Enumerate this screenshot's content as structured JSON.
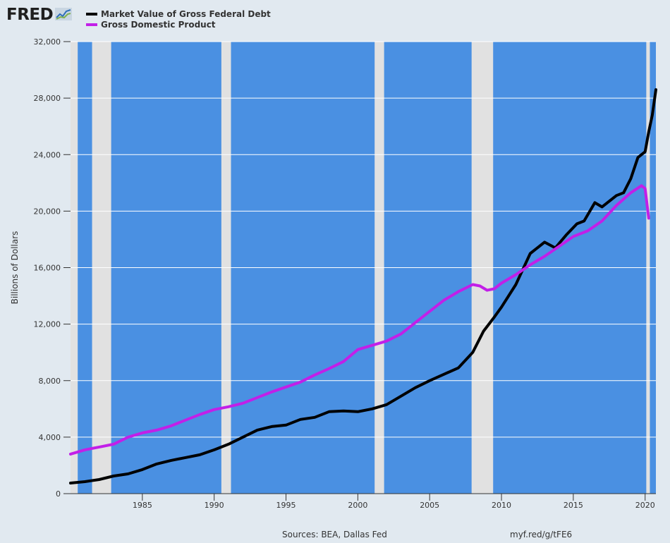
{
  "logo": {
    "text": "FRED"
  },
  "legend": [
    {
      "label": "Market Value of Gross Federal Debt",
      "color": "#000000"
    },
    {
      "label": "Gross Domestic Product",
      "color": "#c21fe8"
    }
  ],
  "footer": {
    "sources": "Sources: BEA, Dallas Fed",
    "link": "myf.red/g/tFE6"
  },
  "colors": {
    "plot_background": "#4a90e2",
    "recession_shading": "#e1e1e1",
    "gridline": "#ffffff",
    "debt_line": "#000000",
    "gdp_line": "#c21fe8"
  },
  "chart_data": {
    "type": "line",
    "title": "",
    "xlabel": "",
    "ylabel": "Billions of Dollars",
    "xlim": [
      1980.0,
      2020.75
    ],
    "ylim": [
      0,
      32000
    ],
    "x_ticks": [
      1985,
      1990,
      1995,
      2000,
      2005,
      2010,
      2015,
      2020
    ],
    "y_ticks": [
      0,
      4000,
      8000,
      12000,
      16000,
      20000,
      24000,
      28000,
      32000
    ],
    "y_tick_labels": [
      "0",
      "4,000",
      "8,000",
      "12,000",
      "16,000",
      "20,000",
      "24,000",
      "28,000",
      "32,000"
    ],
    "grid": true,
    "recessions": [
      [
        1980.0,
        1980.5
      ],
      [
        1981.5,
        1982.83
      ],
      [
        1990.5,
        1991.17
      ],
      [
        2001.17,
        2001.83
      ],
      [
        2007.92,
        2009.42
      ],
      [
        2020.08,
        2020.33
      ]
    ],
    "series": [
      {
        "name": "Market Value of Gross Federal Debt",
        "points": [
          [
            1980,
            750
          ],
          [
            1981,
            850
          ],
          [
            1982,
            1000
          ],
          [
            1983,
            1250
          ],
          [
            1984,
            1400
          ],
          [
            1985,
            1700
          ],
          [
            1986,
            2100
          ],
          [
            1987,
            2350
          ],
          [
            1988,
            2550
          ],
          [
            1989,
            2750
          ],
          [
            1990,
            3100
          ],
          [
            1991,
            3500
          ],
          [
            1992,
            4000
          ],
          [
            1993,
            4500
          ],
          [
            1994,
            4750
          ],
          [
            1995,
            4850
          ],
          [
            1996,
            5250
          ],
          [
            1997,
            5400
          ],
          [
            1998,
            5800
          ],
          [
            1999,
            5850
          ],
          [
            2000,
            5800
          ],
          [
            2001,
            6000
          ],
          [
            2002,
            6300
          ],
          [
            2003,
            6900
          ],
          [
            2004,
            7500
          ],
          [
            2005,
            8000
          ],
          [
            2006,
            8450
          ],
          [
            2007,
            8900
          ],
          [
            2008,
            10000
          ],
          [
            2008.75,
            11500
          ],
          [
            2009.5,
            12500
          ],
          [
            2010,
            13200
          ],
          [
            2011,
            14800
          ],
          [
            2012,
            17000
          ],
          [
            2013,
            17800
          ],
          [
            2013.75,
            17400
          ],
          [
            2014.5,
            18300
          ],
          [
            2015.25,
            19100
          ],
          [
            2015.75,
            19300
          ],
          [
            2016.5,
            20600
          ],
          [
            2017,
            20300
          ],
          [
            2018,
            21100
          ],
          [
            2018.5,
            21300
          ],
          [
            2019,
            22300
          ],
          [
            2019.5,
            23800
          ],
          [
            2020,
            24200
          ],
          [
            2020.25,
            25600
          ],
          [
            2020.5,
            26800
          ],
          [
            2020.75,
            28600
          ]
        ]
      },
      {
        "name": "Gross Domestic Product",
        "points": [
          [
            1980,
            2800
          ],
          [
            1981,
            3100
          ],
          [
            1982,
            3300
          ],
          [
            1983,
            3500
          ],
          [
            1984,
            4000
          ],
          [
            1985,
            4300
          ],
          [
            1986,
            4500
          ],
          [
            1987,
            4800
          ],
          [
            1988,
            5200
          ],
          [
            1989,
            5600
          ],
          [
            1990,
            5950
          ],
          [
            1991,
            6150
          ],
          [
            1992,
            6400
          ],
          [
            1993,
            6800
          ],
          [
            1994,
            7200
          ],
          [
            1995,
            7550
          ],
          [
            1996,
            7900
          ],
          [
            1997,
            8400
          ],
          [
            1998,
            8850
          ],
          [
            1999,
            9350
          ],
          [
            2000,
            10200
          ],
          [
            2001,
            10500
          ],
          [
            2002,
            10800
          ],
          [
            2003,
            11300
          ],
          [
            2004,
            12100
          ],
          [
            2005,
            12900
          ],
          [
            2006,
            13700
          ],
          [
            2007,
            14300
          ],
          [
            2008,
            14800
          ],
          [
            2008.5,
            14700
          ],
          [
            2009,
            14400
          ],
          [
            2009.5,
            14500
          ],
          [
            2010,
            14900
          ],
          [
            2011,
            15500
          ],
          [
            2012,
            16200
          ],
          [
            2013,
            16800
          ],
          [
            2014,
            17500
          ],
          [
            2015,
            18200
          ],
          [
            2016,
            18600
          ],
          [
            2017,
            19300
          ],
          [
            2018,
            20400
          ],
          [
            2019,
            21300
          ],
          [
            2019.75,
            21800
          ],
          [
            2020,
            21600
          ],
          [
            2020.25,
            19500
          ]
        ]
      }
    ]
  }
}
